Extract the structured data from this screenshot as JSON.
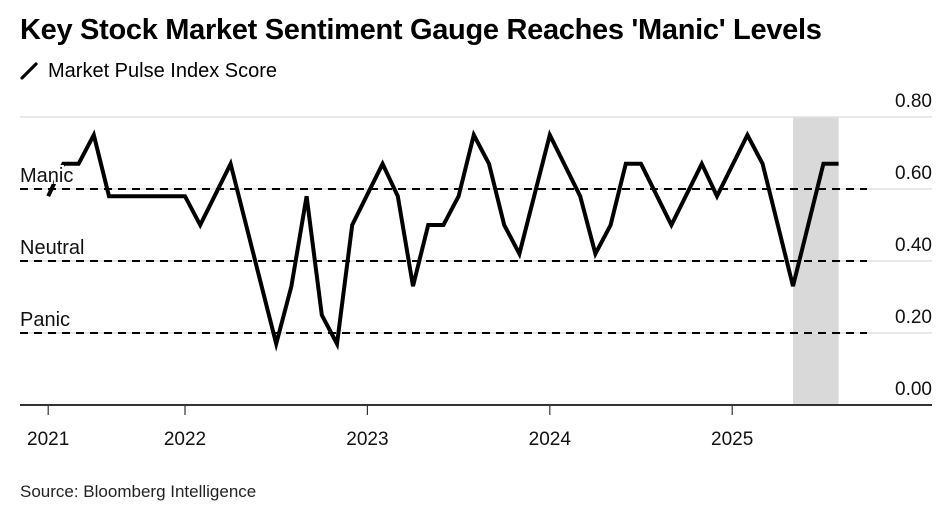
{
  "chart_data": {
    "type": "line",
    "title": "Key Stock Market Sentiment Gauge Reaches 'Manic' Levels",
    "legend": [
      {
        "name": "Market Pulse Index Score",
        "icon": "line-icon",
        "color": "#000000"
      }
    ],
    "xlabel": "",
    "ylabel": "",
    "x_unit": "month index (0 = Jan 2022)",
    "x_ticks": [
      {
        "label": "2021",
        "x": -9
      },
      {
        "label": "2022",
        "x": 0
      },
      {
        "label": "2023",
        "x": 12
      },
      {
        "label": "2024",
        "x": 24
      },
      {
        "label": "2025",
        "x": 36
      }
    ],
    "y_ticks": [
      0.0,
      0.2,
      0.4,
      0.6,
      0.8
    ],
    "y_tick_labels": [
      "0.00",
      "0.20",
      "0.40",
      "0.60",
      "0.80"
    ],
    "ylim": [
      0,
      0.8
    ],
    "xlim": [
      -9,
      43
    ],
    "grid": true,
    "legend_position": "top-left",
    "y_axis_position": "right",
    "reference_lines": [
      {
        "label": "Manic",
        "y": 0.6
      },
      {
        "label": "Neutral",
        "y": 0.4
      },
      {
        "label": "Panic",
        "y": 0.2
      }
    ],
    "shaded_region": {
      "x_start": 40,
      "x_end": 43
    },
    "series": [
      {
        "name": "Market Pulse Index Score",
        "color": "#000000",
        "x": [
          -9,
          -8,
          -7,
          -6,
          -5,
          0,
          1,
          3,
          6,
          7,
          8,
          9,
          10,
          11,
          13,
          14,
          15,
          16,
          17,
          18,
          19,
          20,
          21,
          22,
          24,
          26,
          27,
          28,
          29,
          30,
          32,
          34,
          35,
          37,
          38,
          40,
          42,
          43
        ],
        "values": [
          0.58,
          0.67,
          0.67,
          0.75,
          0.58,
          0.58,
          0.5,
          0.67,
          0.17,
          0.33,
          0.58,
          0.25,
          0.17,
          0.5,
          0.67,
          0.58,
          0.33,
          0.5,
          0.5,
          0.58,
          0.75,
          0.67,
          0.5,
          0.42,
          0.75,
          0.58,
          0.42,
          0.5,
          0.67,
          0.67,
          0.5,
          0.67,
          0.58,
          0.75,
          0.67,
          0.33,
          0.67,
          0.67
        ]
      }
    ]
  },
  "header": {
    "title": "Key Stock Market Sentiment Gauge Reaches 'Manic' Levels",
    "legend_label": "Market Pulse Index Score"
  },
  "footer": {
    "source": "Source: Bloomberg Intelligence"
  }
}
